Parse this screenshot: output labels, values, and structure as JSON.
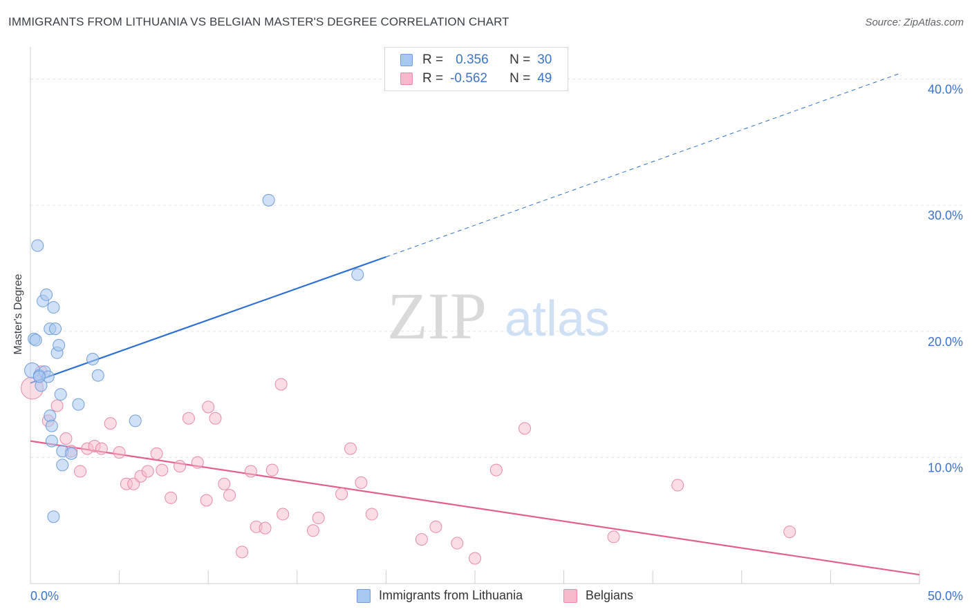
{
  "title": "IMMIGRANTS FROM LITHUANIA VS BELGIAN MASTER'S DEGREE CORRELATION CHART",
  "source": "Source: ZipAtlas.com",
  "watermark": {
    "zip": "ZIP",
    "atlas": "atlas"
  },
  "legend": {
    "rows": [
      {
        "r_label": "R =",
        "r_value": "0.356",
        "n_label": "N =",
        "n_value": "30"
      },
      {
        "r_label": "R =",
        "r_value": "-0.562",
        "n_label": "N =",
        "n_value": "49"
      }
    ]
  },
  "bottom_legend": [
    "Immigrants from Lithuania",
    "Belgians"
  ],
  "colors": {
    "blue_fill": "#a9c8f0",
    "blue_stroke": "#6f9ed9",
    "blue_line": "#2d6fd2",
    "pink_fill": "#f6b9cc",
    "pink_stroke": "#e88aa8",
    "pink_line": "#e0608a",
    "tick_label": "#3b73c8"
  },
  "chart_data": {
    "type": "scatter",
    "title": "IMMIGRANTS FROM LITHUANIA VS BELGIAN MASTER'S DEGREE CORRELATION CHART",
    "xlabel": "",
    "ylabel": "Master's Degree",
    "xlim": [
      0,
      50
    ],
    "ylim": [
      0,
      42
    ],
    "x_tick_labels": [
      "0.0%",
      "50.0%"
    ],
    "y_ticks": [
      10,
      20,
      30,
      40
    ],
    "y_tick_labels": [
      "10.0%",
      "20.0%",
      "30.0%",
      "40.0%"
    ],
    "grid": true,
    "series": [
      {
        "name": "Immigrants from Lithuania",
        "r": 0.356,
        "n": 30,
        "points": [
          [
            0.1,
            16.9
          ],
          [
            0.2,
            19.4
          ],
          [
            0.3,
            19.3
          ],
          [
            0.4,
            26.8
          ],
          [
            0.5,
            16.5
          ],
          [
            0.7,
            22.4
          ],
          [
            0.8,
            16.8
          ],
          [
            0.9,
            22.9
          ],
          [
            1.0,
            16.4
          ],
          [
            1.1,
            20.2
          ],
          [
            1.3,
            21.9
          ],
          [
            1.4,
            20.2
          ],
          [
            1.5,
            18.3
          ],
          [
            1.6,
            18.9
          ],
          [
            1.7,
            15.0
          ],
          [
            0.6,
            15.7
          ],
          [
            1.1,
            13.3
          ],
          [
            1.2,
            12.5
          ],
          [
            1.2,
            11.3
          ],
          [
            1.8,
            10.5
          ],
          [
            2.3,
            10.3
          ],
          [
            1.8,
            9.4
          ],
          [
            2.7,
            14.2
          ],
          [
            3.5,
            17.8
          ],
          [
            3.8,
            16.5
          ],
          [
            5.9,
            12.9
          ],
          [
            13.4,
            30.4
          ],
          [
            18.4,
            24.5
          ],
          [
            1.3,
            5.3
          ],
          [
            0.5,
            16.4
          ]
        ],
        "trend": {
          "x0": 0,
          "y0": 15.9,
          "x1": 20,
          "y1": 25.9,
          "dashed_to_x": 49,
          "dashed_to_y": 40.5
        }
      },
      {
        "name": "Belgians",
        "r": -0.562,
        "n": 49,
        "points": [
          [
            0.1,
            15.5
          ],
          [
            0.6,
            16.8
          ],
          [
            1.0,
            12.9
          ],
          [
            1.5,
            14.1
          ],
          [
            2.0,
            11.5
          ],
          [
            2.3,
            10.5
          ],
          [
            2.8,
            8.9
          ],
          [
            3.2,
            10.7
          ],
          [
            3.6,
            10.9
          ],
          [
            4.0,
            10.7
          ],
          [
            4.5,
            12.7
          ],
          [
            5.0,
            10.4
          ],
          [
            5.4,
            7.9
          ],
          [
            5.8,
            7.9
          ],
          [
            6.2,
            8.5
          ],
          [
            6.6,
            8.9
          ],
          [
            7.1,
            10.3
          ],
          [
            7.4,
            9.0
          ],
          [
            7.9,
            6.8
          ],
          [
            8.4,
            9.3
          ],
          [
            8.9,
            13.1
          ],
          [
            9.4,
            9.6
          ],
          [
            9.9,
            6.6
          ],
          [
            10.0,
            14.0
          ],
          [
            10.4,
            13.1
          ],
          [
            10.9,
            7.9
          ],
          [
            11.2,
            7.0
          ],
          [
            11.9,
            2.5
          ],
          [
            12.4,
            8.9
          ],
          [
            12.7,
            4.5
          ],
          [
            13.2,
            4.4
          ],
          [
            13.6,
            9.0
          ],
          [
            14.2,
            5.5
          ],
          [
            14.1,
            15.8
          ],
          [
            15.9,
            4.2
          ],
          [
            16.2,
            5.2
          ],
          [
            17.5,
            7.1
          ],
          [
            18.0,
            10.7
          ],
          [
            18.6,
            8.0
          ],
          [
            19.2,
            5.5
          ],
          [
            22.0,
            3.5
          ],
          [
            22.8,
            4.5
          ],
          [
            24.0,
            3.2
          ],
          [
            25.0,
            2.0
          ],
          [
            26.2,
            9.0
          ],
          [
            27.8,
            12.3
          ],
          [
            32.8,
            3.7
          ],
          [
            36.4,
            7.8
          ],
          [
            42.7,
            4.1
          ]
        ],
        "trend": {
          "x0": 0,
          "y0": 11.3,
          "x1": 50,
          "y1": 0.7
        }
      }
    ]
  }
}
